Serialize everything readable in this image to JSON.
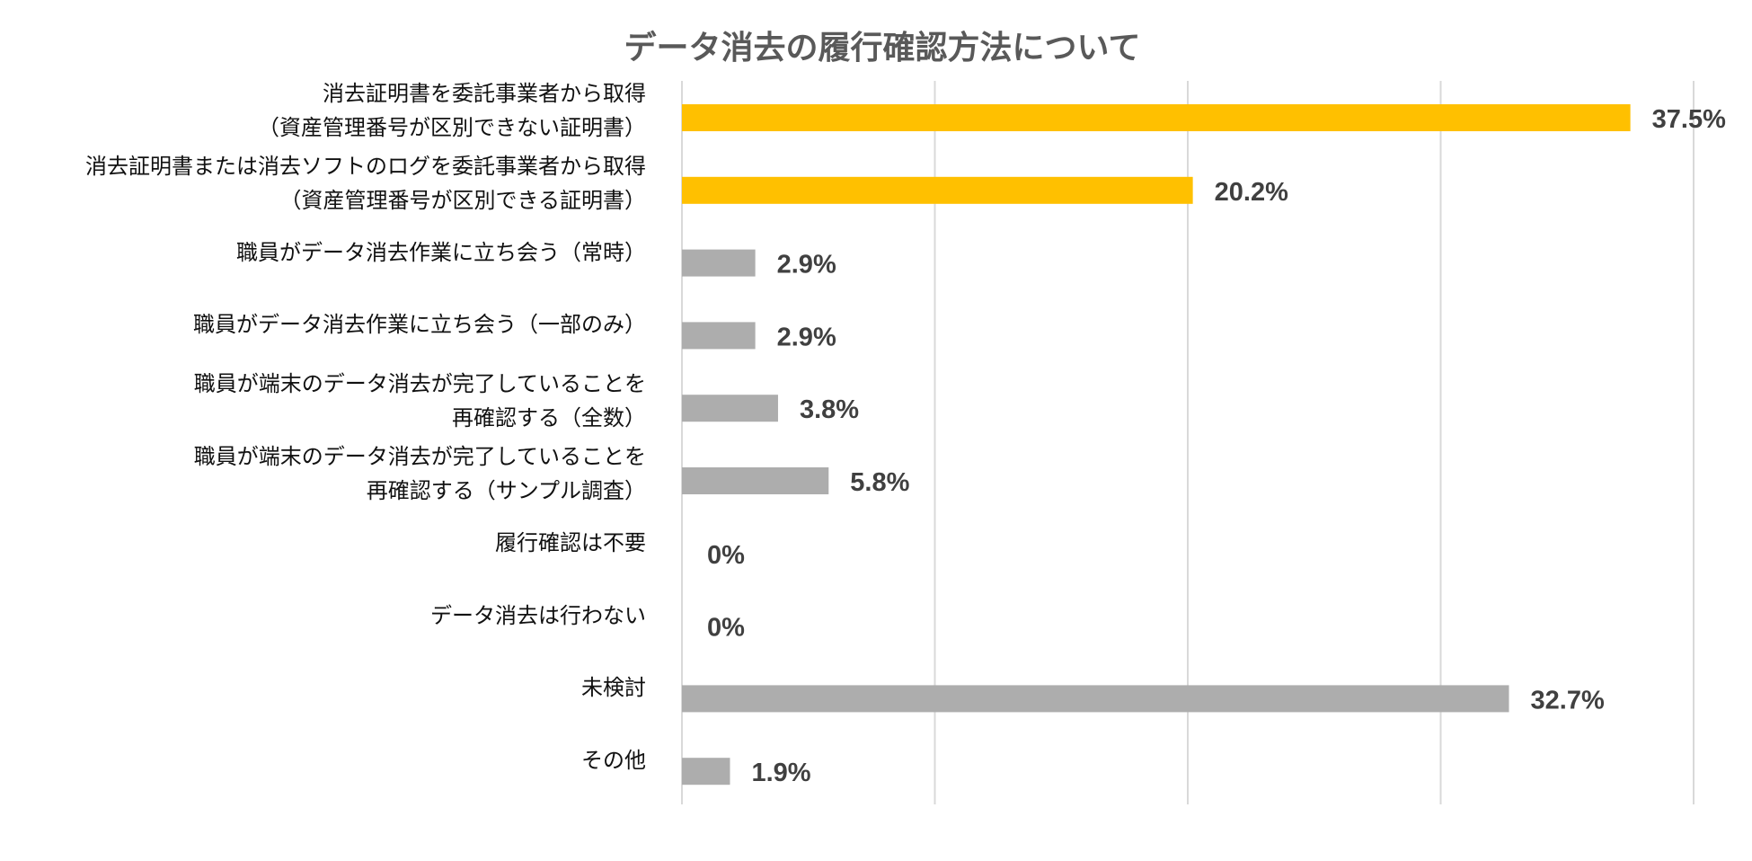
{
  "chart_data": {
    "type": "bar",
    "orientation": "horizontal",
    "title": "データ消去の履行確認方法について",
    "xlabel": "",
    "ylabel": "",
    "xlim": [
      0,
      40
    ],
    "grid": true,
    "gridline_step": 10,
    "categories": [
      [
        "消去証明書を委託事業者から取得",
        "（資産管理番号が区別できない証明書）"
      ],
      [
        "消去証明書または消去ソフトのログを委託事業者から取得",
        "（資産管理番号が区別できる証明書）"
      ],
      [
        "職員がデータ消去作業に立ち会う（常時）"
      ],
      [
        "職員がデータ消去作業に立ち会う（一部のみ）"
      ],
      [
        "職員が端末のデータ消去が完了していることを",
        "再確認する（全数）"
      ],
      [
        "職員が端末のデータ消去が完了していることを",
        "再確認する（サンプル調査）"
      ],
      [
        "履行確認は不要"
      ],
      [
        "データ消去は行わない"
      ],
      [
        "未検討"
      ],
      [
        "その他"
      ]
    ],
    "values": [
      37.5,
      20.2,
      2.9,
      2.9,
      3.8,
      5.8,
      0,
      0,
      32.7,
      1.9
    ],
    "data_labels": [
      "37.5%",
      "20.2%",
      "2.9%",
      "2.9%",
      "3.8%",
      "5.8%",
      "0%",
      "0%",
      "32.7%",
      "1.9%"
    ],
    "bar_colors": [
      "#FFC000",
      "#FFC000",
      "#ADADAD",
      "#ADADAD",
      "#ADADAD",
      "#ADADAD",
      "#ADADAD",
      "#ADADAD",
      "#ADADAD",
      "#ADADAD"
    ],
    "gridline_color": "#D9D9D9",
    "data_label_color": "#404040"
  }
}
